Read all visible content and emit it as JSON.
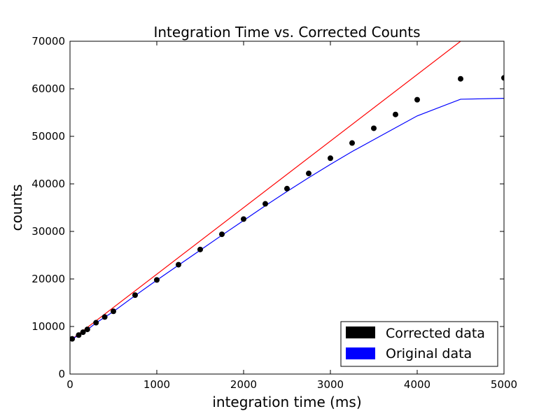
{
  "chart_data": {
    "type": "line",
    "title": "Integration Time vs. Corrected Counts",
    "xlabel": "integration time (ms)",
    "ylabel": "counts",
    "xlim": [
      0,
      5000
    ],
    "ylim": [
      0,
      70000
    ],
    "x_ticks": [
      0,
      1000,
      2000,
      3000,
      4000,
      5000
    ],
    "y_ticks": [
      0,
      10000,
      20000,
      30000,
      40000,
      50000,
      60000,
      70000
    ],
    "grid": false,
    "legend_position": "lower-right",
    "series": [
      {
        "name": "Corrected data",
        "style": "scatter",
        "color": "#000000",
        "x": [
          25,
          100,
          150,
          200,
          300,
          400,
          500,
          750,
          1000,
          1250,
          1500,
          1750,
          2000,
          2250,
          2500,
          2750,
          3000,
          3250,
          3500,
          3750,
          4000,
          4500,
          5000
        ],
        "y": [
          7400,
          8200,
          8800,
          9400,
          10800,
          12000,
          13200,
          16600,
          19800,
          23000,
          26200,
          29400,
          32600,
          35800,
          39000,
          42200,
          45400,
          48600,
          51700,
          54600,
          57700,
          62100,
          62300
        ]
      },
      {
        "name": "Original data",
        "style": "line",
        "color": "#0000ff",
        "x": [
          25,
          100,
          150,
          200,
          300,
          400,
          500,
          750,
          1000,
          1250,
          1500,
          1750,
          2000,
          2250,
          2500,
          2750,
          3000,
          3250,
          3500,
          3750,
          4000,
          4500,
          5000
        ],
        "y": [
          7400,
          8150,
          8750,
          9350,
          10750,
          11950,
          13150,
          16500,
          19750,
          22900,
          26050,
          29200,
          32300,
          35400,
          38400,
          41300,
          44100,
          46800,
          49300,
          51800,
          54300,
          57800,
          58000
        ]
      },
      {
        "style": "line",
        "color": "#ff0000",
        "x": [
          0,
          5000
        ],
        "y": [
          7000,
          77000
        ]
      }
    ]
  }
}
